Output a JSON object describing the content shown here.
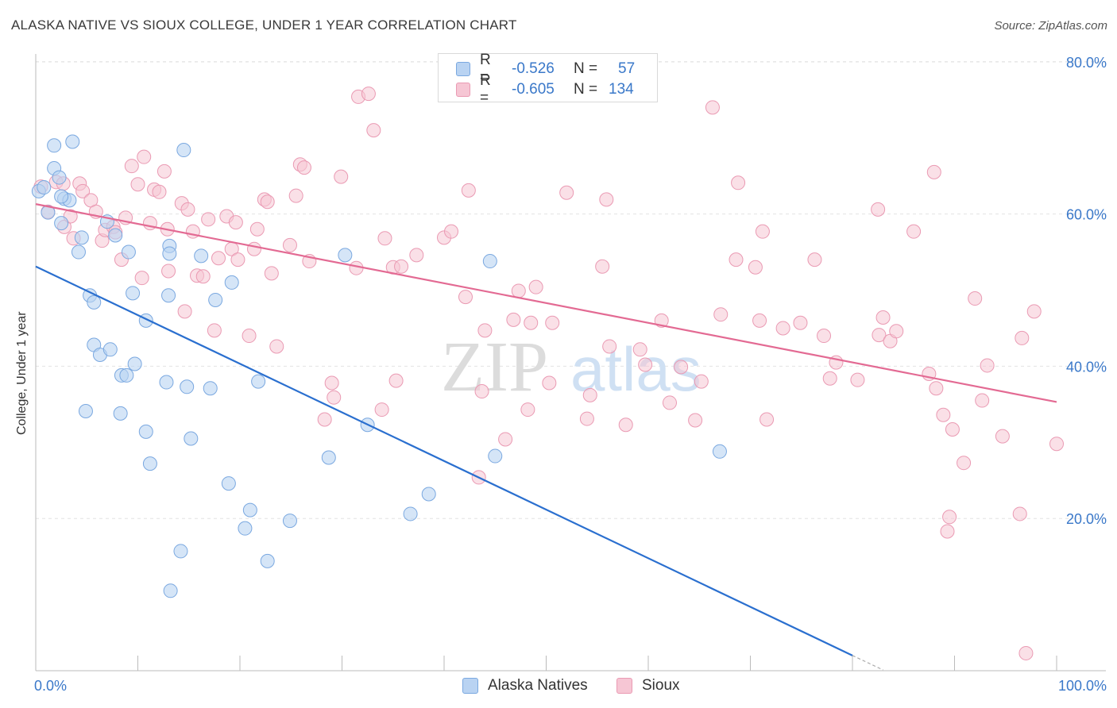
{
  "title": "ALASKA NATIVE VS SIOUX COLLEGE, UNDER 1 YEAR CORRELATION CHART",
  "source": "Source: ZipAtlas.com",
  "watermark": {
    "zip": "ZIP",
    "atlas": "atlas"
  },
  "legend": {
    "series1": {
      "r_label": "R =",
      "r_value": "-0.526",
      "n_label": "N =",
      "n_value": "57"
    },
    "series2": {
      "r_label": "R =",
      "r_value": "-0.605",
      "n_label": "N =",
      "n_value": "134"
    }
  },
  "colors": {
    "blue_fill": "#b9d3f2",
    "blue_stroke": "#7aa8e0",
    "blue_line": "#2a6fcf",
    "pink_fill": "#f6c6d4",
    "pink_stroke": "#ea9ab3",
    "pink_line": "#e36a93",
    "accent_text": "#3a78c9"
  },
  "chart_data": {
    "type": "scatter",
    "title": "ALASKA NATIVE VS SIOUX COLLEGE, UNDER 1 YEAR CORRELATION CHART",
    "xlabel": "",
    "ylabel": "College, Under 1 year",
    "xlim": [
      0,
      100
    ],
    "ylim": [
      0,
      82
    ],
    "x_tick_labels": [
      "0.0%",
      "100.0%"
    ],
    "y_tick_values": [
      20,
      40,
      60,
      80
    ],
    "y_tick_labels": [
      "20.0%",
      "40.0%",
      "60.0%",
      "80.0%"
    ],
    "grid": true,
    "series": [
      {
        "name": "Alaska Natives",
        "trend": {
          "x1": 0,
          "y1": 53.1,
          "x2": 80,
          "y2": 2.0,
          "dash_to_x": 83,
          "dash_to_y": 0.1
        },
        "points": [
          [
            0.3,
            63
          ],
          [
            0.8,
            63.5
          ],
          [
            1.2,
            60.2
          ],
          [
            1.8,
            69
          ],
          [
            1.8,
            66
          ],
          [
            2.3,
            64.8
          ],
          [
            2.8,
            62
          ],
          [
            3.3,
            61.8
          ],
          [
            2.5,
            62.3
          ],
          [
            3.6,
            69.5
          ],
          [
            2.5,
            58.8
          ],
          [
            4.5,
            56.9
          ],
          [
            4.2,
            55
          ],
          [
            5.3,
            49.3
          ],
          [
            5.7,
            48.4
          ],
          [
            5.7,
            42.8
          ],
          [
            6.3,
            41.5
          ],
          [
            7.3,
            42.2
          ],
          [
            7.0,
            59
          ],
          [
            7.8,
            57.2
          ],
          [
            8.4,
            38.8
          ],
          [
            8.9,
            38.8
          ],
          [
            9.1,
            55
          ],
          [
            9.5,
            49.6
          ],
          [
            9.7,
            40.3
          ],
          [
            10.8,
            46
          ],
          [
            10.8,
            31.4
          ],
          [
            11.2,
            27.2
          ],
          [
            4.9,
            34.1
          ],
          [
            8.3,
            33.8
          ],
          [
            12.8,
            37.9
          ],
          [
            13.1,
            55.8
          ],
          [
            14.2,
            15.7
          ],
          [
            14.5,
            68.4
          ],
          [
            14.8,
            37.3
          ],
          [
            13.1,
            54.8
          ],
          [
            13.0,
            49.3
          ],
          [
            13.2,
            10.5
          ],
          [
            15.2,
            30.5
          ],
          [
            16.2,
            54.5
          ],
          [
            17.1,
            37.1
          ],
          [
            17.6,
            48.7
          ],
          [
            18.9,
            24.6
          ],
          [
            19.2,
            51
          ],
          [
            20.5,
            18.7
          ],
          [
            21.0,
            21.1
          ],
          [
            21.8,
            38
          ],
          [
            22.7,
            14.4
          ],
          [
            24.9,
            19.7
          ],
          [
            28.7,
            28
          ],
          [
            30.3,
            54.6
          ],
          [
            32.5,
            32.3
          ],
          [
            36.7,
            20.6
          ],
          [
            38.5,
            23.2
          ],
          [
            44.5,
            53.8
          ],
          [
            45.0,
            28.2
          ],
          [
            67.0,
            28.8
          ]
        ]
      },
      {
        "name": "Sioux",
        "trend": {
          "x1": 0,
          "y1": 61.3,
          "x2": 100,
          "y2": 35.3
        },
        "points": [
          [
            0.5,
            63.6
          ],
          [
            1.2,
            60.3
          ],
          [
            2.0,
            64.2
          ],
          [
            2.7,
            64
          ],
          [
            2.8,
            58.3
          ],
          [
            3.4,
            59.7
          ],
          [
            3.7,
            56.8
          ],
          [
            4.3,
            64
          ],
          [
            4.6,
            63
          ],
          [
            5.4,
            61.8
          ],
          [
            5.9,
            60.3
          ],
          [
            6.5,
            56.5
          ],
          [
            6.8,
            57.9
          ],
          [
            7.6,
            58.3
          ],
          [
            7.8,
            57.6
          ],
          [
            8.4,
            54
          ],
          [
            8.8,
            59.5
          ],
          [
            9.4,
            66.3
          ],
          [
            10.0,
            63.9
          ],
          [
            10.4,
            51.6
          ],
          [
            10.6,
            67.5
          ],
          [
            11.2,
            58.8
          ],
          [
            11.6,
            63.2
          ],
          [
            12.1,
            62.9
          ],
          [
            12.6,
            65.6
          ],
          [
            12.9,
            58
          ],
          [
            13.0,
            52.5
          ],
          [
            14.3,
            61.4
          ],
          [
            14.6,
            47.2
          ],
          [
            14.9,
            60.6
          ],
          [
            15.4,
            57.7
          ],
          [
            15.8,
            51.9
          ],
          [
            16.4,
            51.8
          ],
          [
            16.9,
            59.3
          ],
          [
            17.5,
            44.7
          ],
          [
            17.9,
            54.2
          ],
          [
            18.7,
            59.7
          ],
          [
            19.2,
            55.4
          ],
          [
            19.6,
            58.9
          ],
          [
            19.8,
            54
          ],
          [
            20.9,
            44
          ],
          [
            21.4,
            55.4
          ],
          [
            21.7,
            58
          ],
          [
            22.4,
            61.9
          ],
          [
            22.7,
            61.6
          ],
          [
            23.1,
            52.2
          ],
          [
            23.6,
            42.6
          ],
          [
            24.9,
            55.9
          ],
          [
            25.5,
            62.4
          ],
          [
            25.9,
            66.5
          ],
          [
            26.3,
            66.1
          ],
          [
            26.8,
            53.8
          ],
          [
            28.3,
            33
          ],
          [
            29.0,
            37.8
          ],
          [
            29.2,
            35.9
          ],
          [
            29.9,
            64.9
          ],
          [
            31.4,
            52.9
          ],
          [
            31.6,
            75.4
          ],
          [
            32.6,
            75.8
          ],
          [
            33.1,
            71
          ],
          [
            33.9,
            34.3
          ],
          [
            34.2,
            56.8
          ],
          [
            35.0,
            53
          ],
          [
            35.3,
            38.1
          ],
          [
            35.8,
            53.1
          ],
          [
            37.3,
            54.6
          ],
          [
            40.0,
            56.9
          ],
          [
            40.7,
            57.7
          ],
          [
            42.1,
            49.1
          ],
          [
            42.4,
            63.1
          ],
          [
            43.4,
            25.4
          ],
          [
            43.7,
            36.7
          ],
          [
            44.0,
            44.7
          ],
          [
            46.0,
            30.4
          ],
          [
            46.8,
            46.1
          ],
          [
            47.3,
            49.9
          ],
          [
            48.2,
            34.3
          ],
          [
            48.5,
            45.7
          ],
          [
            49.0,
            50.4
          ],
          [
            50.3,
            37.8
          ],
          [
            50.6,
            45.7
          ],
          [
            52.0,
            62.8
          ],
          [
            54.0,
            33.1
          ],
          [
            54.3,
            36.2
          ],
          [
            55.5,
            53.1
          ],
          [
            55.9,
            61.9
          ],
          [
            56.2,
            42.6
          ],
          [
            57.8,
            32.3
          ],
          [
            59.2,
            42.2
          ],
          [
            59.7,
            40.2
          ],
          [
            61.3,
            46
          ],
          [
            62.1,
            35.2
          ],
          [
            63.2,
            39.9
          ],
          [
            64.6,
            32.9
          ],
          [
            65.2,
            38
          ],
          [
            66.3,
            74
          ],
          [
            67.1,
            46.8
          ],
          [
            68.6,
            54
          ],
          [
            68.8,
            64.1
          ],
          [
            70.5,
            53
          ],
          [
            70.9,
            46
          ],
          [
            71.2,
            57.7
          ],
          [
            71.6,
            33
          ],
          [
            73.2,
            45
          ],
          [
            74.9,
            45.7
          ],
          [
            76.3,
            54
          ],
          [
            77.2,
            44
          ],
          [
            77.8,
            38.4
          ],
          [
            78.4,
            40.5
          ],
          [
            80.5,
            38.2
          ],
          [
            82.5,
            60.6
          ],
          [
            82.6,
            44.1
          ],
          [
            83.0,
            46.4
          ],
          [
            83.7,
            43.3
          ],
          [
            84.3,
            44.6
          ],
          [
            86.0,
            57.7
          ],
          [
            87.5,
            39
          ],
          [
            88.0,
            65.5
          ],
          [
            88.2,
            37.1
          ],
          [
            88.9,
            33.6
          ],
          [
            89.3,
            18.3
          ],
          [
            89.5,
            20.2
          ],
          [
            89.8,
            31.7
          ],
          [
            90.9,
            27.3
          ],
          [
            92.0,
            48.9
          ],
          [
            92.7,
            35.5
          ],
          [
            93.2,
            40.1
          ],
          [
            94.7,
            30.8
          ],
          [
            96.4,
            20.6
          ],
          [
            96.6,
            43.7
          ],
          [
            97.0,
            2.3
          ],
          [
            97.8,
            47.2
          ],
          [
            100,
            29.8
          ]
        ]
      }
    ]
  },
  "bottom_legend": {
    "series1_label": "Alaska Natives",
    "series2_label": "Sioux"
  }
}
